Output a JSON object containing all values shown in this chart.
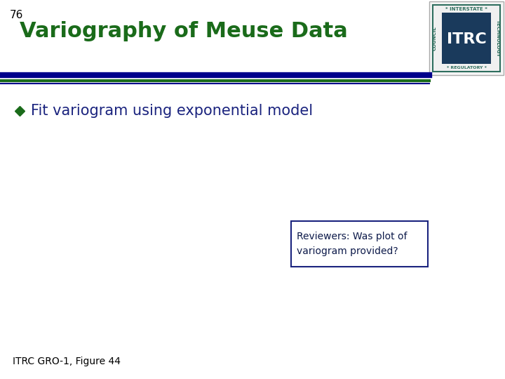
{
  "slide_number": "76",
  "title": "Variography of Meuse Data",
  "bullet_text": "Fit variogram using exponential model",
  "reviewer_box_text": "Reviewers: Was plot of\nvariogram provided?",
  "footer_text": "ITRC GRO-1, Figure 44",
  "background_color": "#ffffff",
  "title_color": "#1a6b1a",
  "slide_number_color": "#000000",
  "bullet_color": "#1a237e",
  "bullet_marker_color": "#1a6b1a",
  "reviewer_box_border_color": "#1a237e",
  "reviewer_text_color": "#0d1a4a",
  "footer_color": "#000000",
  "sep_blue_color": "#00008b",
  "sep_green_color": "#1a6b1a",
  "title_fontsize": 22,
  "slide_number_fontsize": 11,
  "bullet_fontsize": 15,
  "reviewer_fontsize": 10,
  "footer_fontsize": 10,
  "logo_outer_color": "#2e6e5e",
  "logo_inner_bg": "#1a3a5c",
  "logo_text_color": "#ffffff",
  "logo_label_color": "#2e6e5e"
}
